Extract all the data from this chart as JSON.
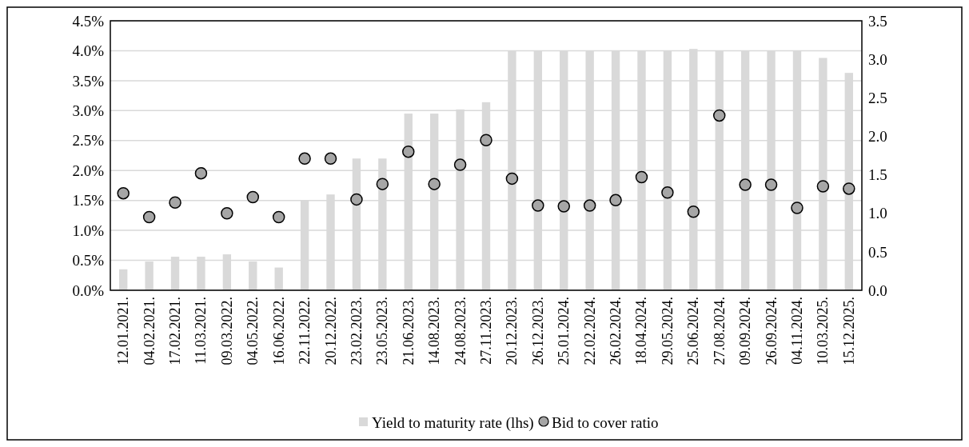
{
  "chart_data": {
    "type": "bar",
    "categories": [
      "12.01.2021.",
      "04.02.2021.",
      "17.02.2021.",
      "11.03.2021.",
      "09.03.2022.",
      "04.05.2022.",
      "16.06.2022.",
      "22.11.2022.",
      "20.12.2022.",
      "23.02.2023.",
      "23.05.2023.",
      "21.06.2023.",
      "14.08.2023.",
      "24.08.2023.",
      "27.11.2023.",
      "20.12.2023.",
      "26.12.2023.",
      "25.01.2024.",
      "22.02.2024.",
      "26.02.2024.",
      "18.04.2024.",
      "29.05.2024.",
      "25.06.2024.",
      "27.08.2024.",
      "09.09.2024.",
      "26.09.2024.",
      "04.11.2024.",
      "10.03.2025.",
      "15.12.2025."
    ],
    "series": [
      {
        "name": "Yield to maturity rate (lhs)",
        "type": "bar",
        "color": "#d9d9d9",
        "values": [
          0.35,
          0.48,
          0.56,
          0.56,
          0.6,
          0.48,
          0.38,
          1.5,
          1.6,
          2.2,
          2.2,
          2.95,
          2.95,
          3.02,
          3.14,
          4.0,
          4.0,
          4.0,
          4.0,
          4.0,
          4.0,
          4.0,
          4.03,
          4.0,
          4.0,
          4.0,
          4.0,
          3.88,
          3.63
        ]
      },
      {
        "name": "Bid to cover ratio",
        "type": "scatter",
        "axis": "y2",
        "color": "#a6a6a6",
        "values": [
          1.26,
          0.95,
          1.14,
          1.52,
          1.0,
          1.21,
          0.95,
          1.71,
          1.71,
          1.18,
          1.38,
          1.8,
          1.38,
          1.63,
          1.95,
          1.45,
          1.1,
          1.09,
          1.1,
          1.17,
          1.47,
          1.27,
          1.02,
          2.27,
          1.37,
          1.37,
          1.07,
          1.35,
          1.32
        ]
      }
    ],
    "ylim": [
      0,
      4.5
    ],
    "yticks": [
      {
        "value": 0,
        "label": "0.0%"
      },
      {
        "value": 0.5,
        "label": "0.5%"
      },
      {
        "value": 1,
        "label": "1.0%"
      },
      {
        "value": 1.5,
        "label": "1.5%"
      },
      {
        "value": 2,
        "label": "2.0%"
      },
      {
        "value": 2.5,
        "label": "2.5%"
      },
      {
        "value": 3,
        "label": "3.0%"
      },
      {
        "value": 3.5,
        "label": "3.5%"
      },
      {
        "value": 4,
        "label": "4.0%"
      },
      {
        "value": 4.5,
        "label": "4.5%"
      }
    ],
    "y2lim": [
      0,
      3.5
    ],
    "y2ticks": [
      {
        "value": 0,
        "label": "0.0"
      },
      {
        "value": 0.5,
        "label": "0.5"
      },
      {
        "value": 1,
        "label": "1.0"
      },
      {
        "value": 1.5,
        "label": "1.5"
      },
      {
        "value": 2,
        "label": "2.0"
      },
      {
        "value": 2.5,
        "label": "2.5"
      },
      {
        "value": 3,
        "label": "3.0"
      },
      {
        "value": 3.5,
        "label": "3.5"
      }
    ],
    "grid": "y",
    "legend": "bottom",
    "marker": "circle"
  }
}
